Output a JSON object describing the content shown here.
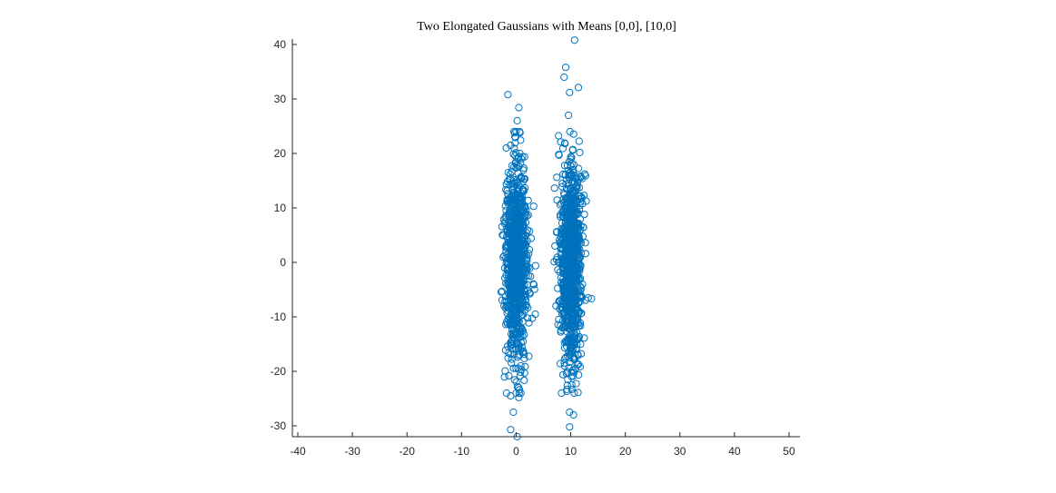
{
  "chart_data": {
    "type": "scatter",
    "title": "Two Elongated Gaussians with Means [0,0], [10,0]",
    "xlabel": "",
    "ylabel": "",
    "xlim": [
      -41,
      52
    ],
    "ylim": [
      -32,
      41
    ],
    "xticks": [
      -40,
      -30,
      -20,
      -10,
      0,
      10,
      20,
      30,
      40,
      50
    ],
    "yticks": [
      -30,
      -20,
      -10,
      0,
      10,
      20,
      30,
      40
    ],
    "marker": "circle-open",
    "marker_color": "#0072BD",
    "grid": false,
    "legend": "none",
    "box": false,
    "series": [
      {
        "mean": [
          0,
          0
        ],
        "std": [
          1.0,
          9.0
        ],
        "n_points": 1000,
        "visible_outliers": [
          [
            -1.5,
            30.8
          ],
          [
            0.5,
            28.4
          ],
          [
            0.2,
            26.0
          ],
          [
            -1.8,
            21.0
          ],
          [
            3.2,
            10.3
          ],
          [
            3.5,
            -9.5
          ],
          [
            -1.0,
            -24.5
          ],
          [
            0.5,
            -24.8
          ],
          [
            -0.5,
            -27.5
          ],
          [
            -1.0,
            -30.7
          ],
          [
            0.2,
            -32.0
          ]
        ]
      },
      {
        "mean": [
          10,
          0
        ],
        "std": [
          1.0,
          9.0
        ],
        "n_points": 1000,
        "visible_outliers": [
          [
            10.7,
            40.8
          ],
          [
            9.1,
            35.8
          ],
          [
            8.8,
            34.0
          ],
          [
            11.4,
            32.1
          ],
          [
            9.8,
            31.2
          ],
          [
            9.6,
            27.0
          ],
          [
            7.8,
            19.8
          ],
          [
            13.2,
            -6.5
          ],
          [
            9.8,
            -27.5
          ],
          [
            10.5,
            -28.0
          ],
          [
            9.8,
            -30.2
          ]
        ]
      }
    ]
  }
}
